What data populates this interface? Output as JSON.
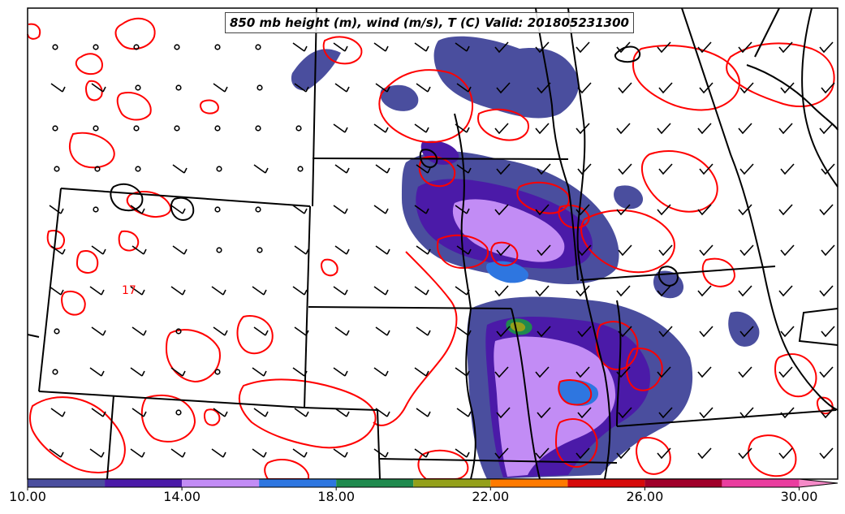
{
  "title": "850 mb height (m), wind (m/s), T (C) Valid: 201805231300",
  "colorbar": {
    "ticks": [
      "10.00",
      "14.00",
      "18.00",
      "22.00",
      "26.00",
      "30.00"
    ],
    "tick_values": [
      10,
      14,
      18,
      22,
      26,
      30
    ],
    "range": [
      10,
      31
    ],
    "bins": [
      {
        "from": 10,
        "to": 12,
        "color": "#4a4e9e"
      },
      {
        "from": 12,
        "to": 14,
        "color": "#4b1aa8"
      },
      {
        "from": 14,
        "to": 16,
        "color": "#c28cf5"
      },
      {
        "from": 16,
        "to": 18,
        "color": "#2e76e0"
      },
      {
        "from": 18,
        "to": 20,
        "color": "#1f8a4e"
      },
      {
        "from": 20,
        "to": 22,
        "color": "#94a01a"
      },
      {
        "from": 22,
        "to": 24,
        "color": "#ff7a00"
      },
      {
        "from": 24,
        "to": 26,
        "color": "#d60a0a"
      },
      {
        "from": 26,
        "to": 28,
        "color": "#a0002a"
      },
      {
        "from": 28,
        "to": 30,
        "color": "#ea3d9f"
      },
      {
        "from": 30,
        "to": 31,
        "color": "#f58ac8"
      }
    ]
  },
  "colors": {
    "temperature_contour": "#ff0000",
    "borders": "#000000",
    "wind_barb": "#000000"
  },
  "contour_label": "17"
}
